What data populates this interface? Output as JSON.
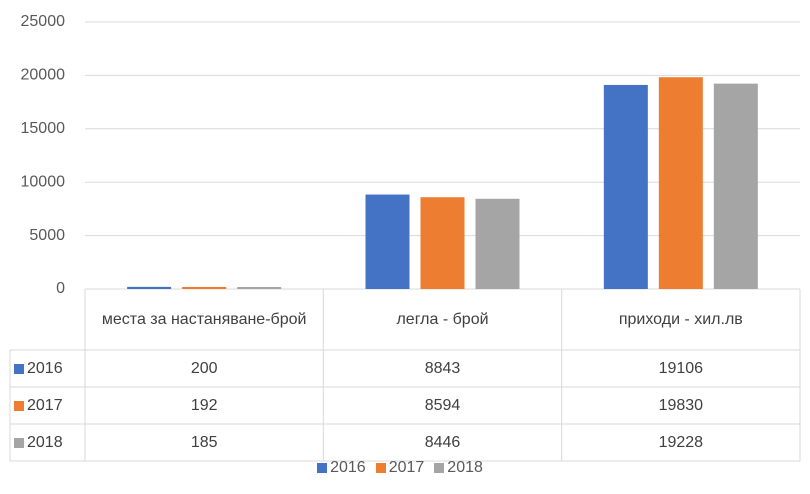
{
  "chart_data": {
    "type": "bar",
    "categories": [
      "места за настаняване-брой",
      "легла - брой",
      "приходи - хил.лв"
    ],
    "series": [
      {
        "name": "2016",
        "color": "#4472c4",
        "values": [
          200,
          8843,
          19106
        ]
      },
      {
        "name": "2017",
        "color": "#ed7d31",
        "values": [
          192,
          8594,
          19830
        ]
      },
      {
        "name": "2018",
        "color": "#a5a5a5",
        "values": [
          185,
          8446,
          19228
        ]
      }
    ],
    "ylim": [
      0,
      25000
    ],
    "yticks": [
      0,
      5000,
      10000,
      15000,
      20000,
      25000
    ],
    "grid": true,
    "data_table": true,
    "legend": "bottom"
  }
}
